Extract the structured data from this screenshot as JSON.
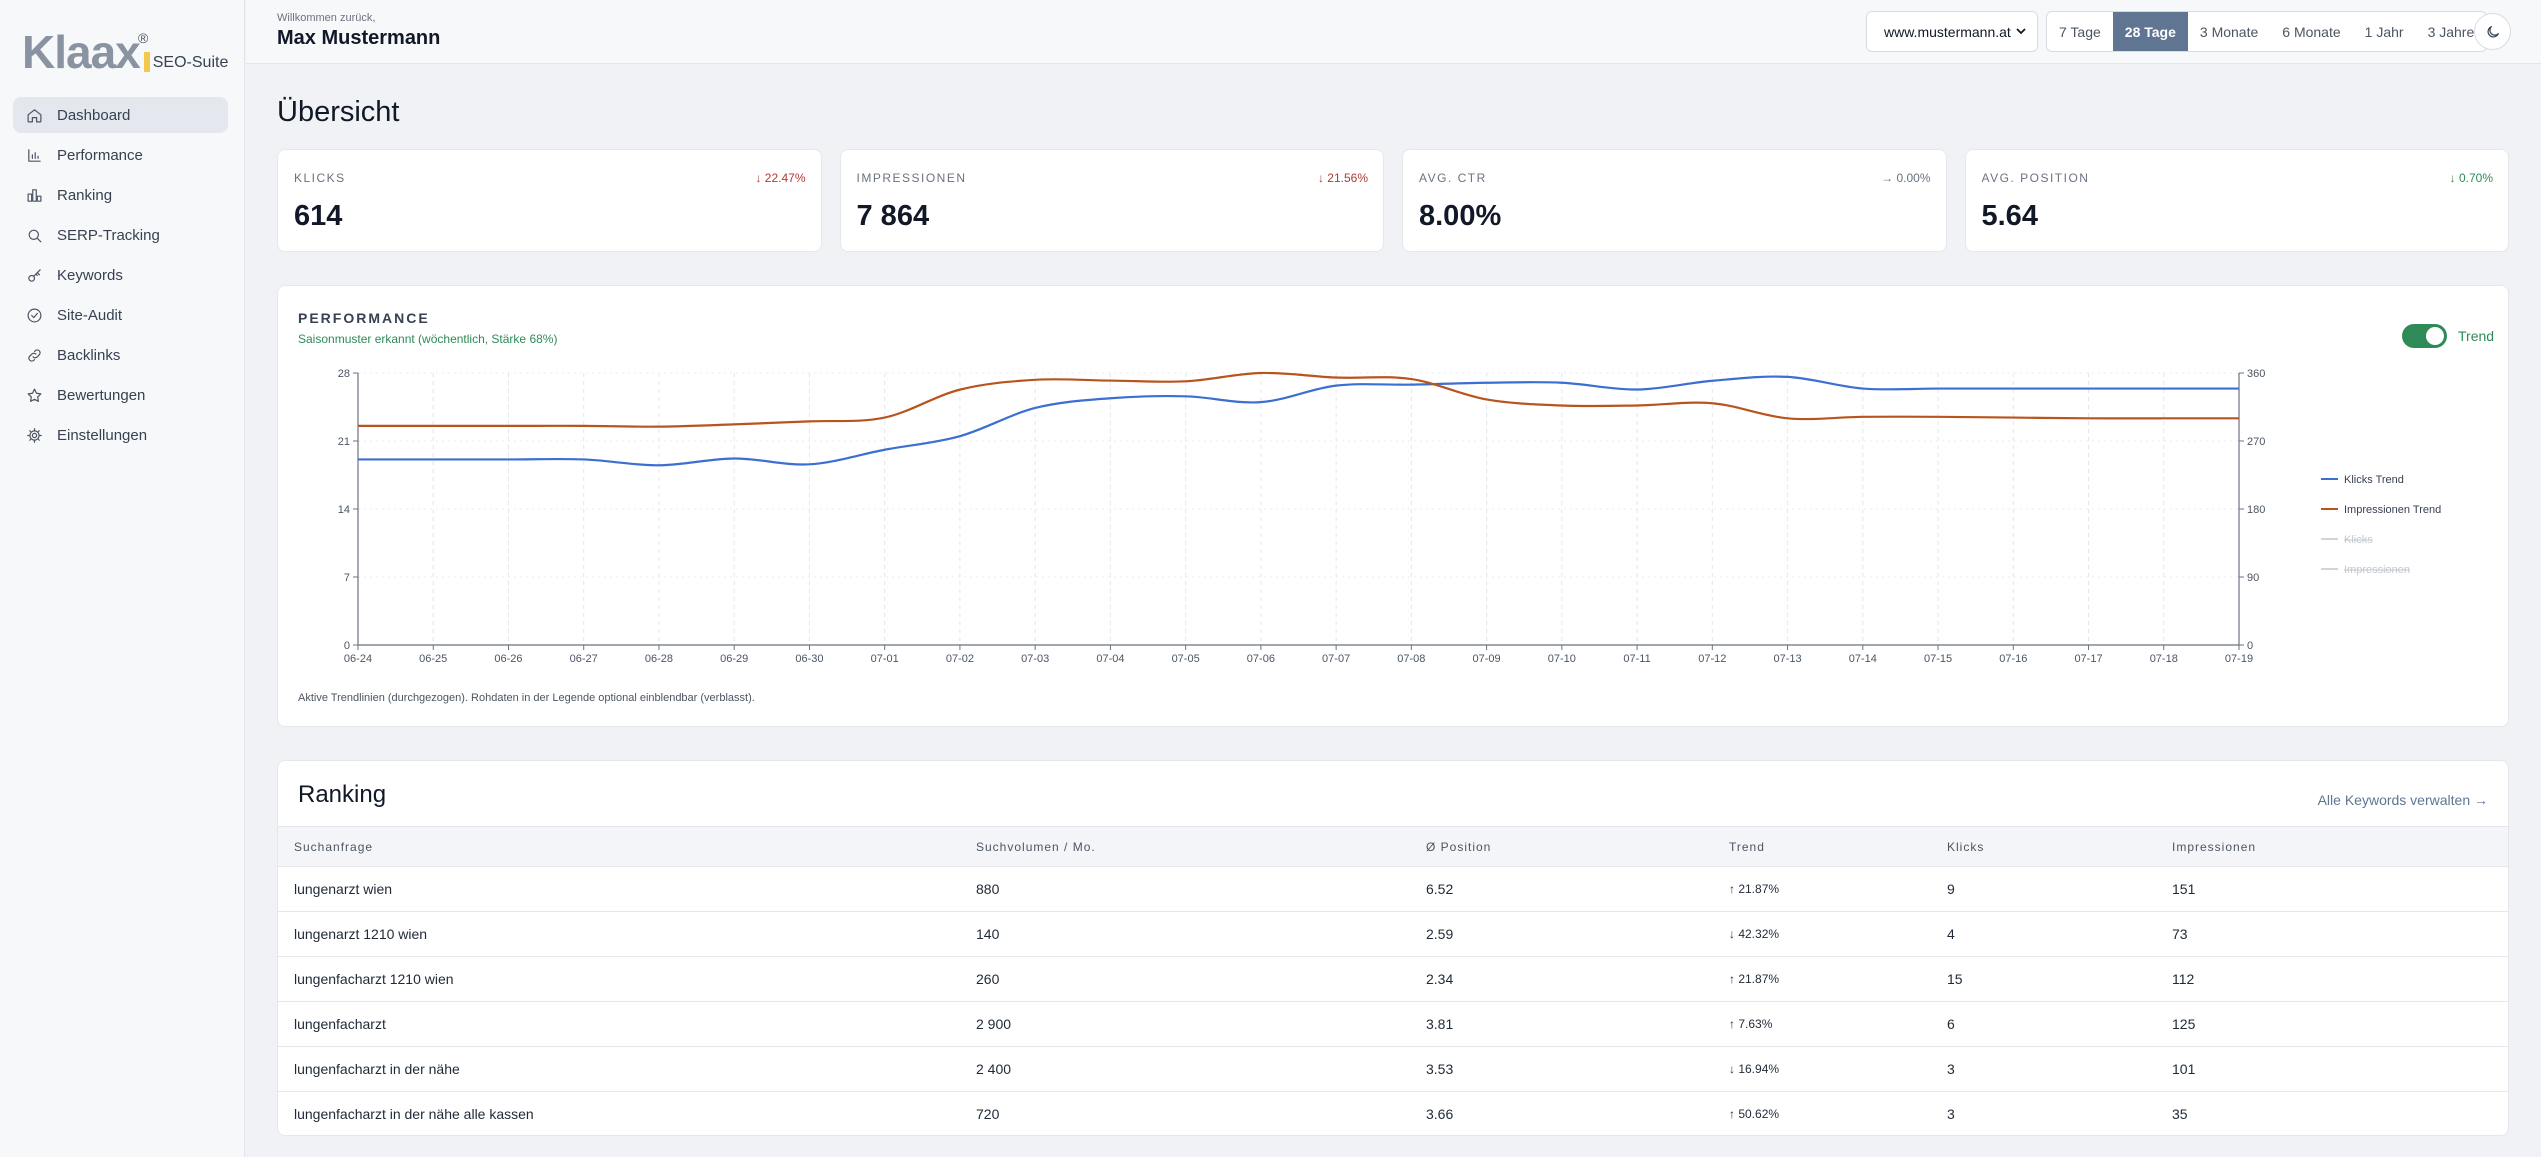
{
  "brand": {
    "logo_text": "Klaax",
    "logo_reg": "®",
    "suite": "SEO-Suite"
  },
  "sidebar": {
    "items": [
      {
        "label": "Dashboard",
        "icon": "home-icon",
        "active": true
      },
      {
        "label": "Performance",
        "icon": "bar-chart-icon"
      },
      {
        "label": "Ranking",
        "icon": "ranking-bars-icon"
      },
      {
        "label": "SERP-Tracking",
        "icon": "search-icon"
      },
      {
        "label": "Keywords",
        "icon": "key-icon"
      },
      {
        "label": "Site-Audit",
        "icon": "check-circle-icon"
      },
      {
        "label": "Backlinks",
        "icon": "link-icon"
      },
      {
        "label": "Bewertungen",
        "icon": "star-icon"
      },
      {
        "label": "Einstellungen",
        "icon": "gear-icon"
      }
    ]
  },
  "header": {
    "welcome": "Willkommen zurück,",
    "user": "Max Mustermann",
    "domain": "www.mustermann.at",
    "ranges": [
      "7 Tage",
      "28 Tage",
      "3 Monate",
      "6 Monate",
      "1 Jahr",
      "3 Jahre"
    ],
    "active_range": "28 Tage",
    "theme_icon": "moon-icon"
  },
  "page_title": "Übersicht",
  "kpis": [
    {
      "label": "KLICKS",
      "value": "614",
      "delta": "22.47%",
      "direction": "down",
      "color": "#b03a2e"
    },
    {
      "label": "IMPRESSIONEN",
      "value": "7 864",
      "delta": "21.56%",
      "direction": "down",
      "color": "#b03a2e"
    },
    {
      "label": "AVG. CTR",
      "value": "8.00%",
      "delta": "0.00%",
      "direction": "flat",
      "color": "#6b7280"
    },
    {
      "label": "AVG. POSITION",
      "value": "5.64",
      "delta": "0.70%",
      "direction": "down",
      "color": "#2e8b57"
    }
  ],
  "performance": {
    "title": "PERFORMANCE",
    "subtitle": "Saisonmuster erkannt (wöchentlich, Stärke 68%)",
    "trend_label": "Trend",
    "trend_on": true,
    "note": "Aktive Trendlinien (durchgezogen). Rohdaten in der Legende optional einblendbar (verblasst)."
  },
  "chart_data": {
    "type": "line",
    "x": [
      "06-24",
      "06-25",
      "06-26",
      "06-27",
      "06-28",
      "06-29",
      "06-30",
      "07-01",
      "07-02",
      "07-03",
      "07-04",
      "07-05",
      "07-06",
      "07-07",
      "07-08",
      "07-09",
      "07-10",
      "07-11",
      "07-12",
      "07-13",
      "07-14",
      "07-15",
      "07-16",
      "07-17",
      "07-18",
      "07-19"
    ],
    "y_left": {
      "ticks": [
        "0",
        "7",
        "14",
        "21",
        "28"
      ],
      "min": 0,
      "max": 28
    },
    "y_right": {
      "ticks": [
        "0",
        "90",
        "180",
        "270",
        "360"
      ],
      "min": 0,
      "max": 360
    },
    "series": [
      {
        "name": "Klicks Trend",
        "axis": "left",
        "color": "#3b6fd1",
        "values": [
          19.1,
          19.1,
          19.1,
          19.1,
          18.5,
          19.2,
          18.6,
          20.1,
          21.5,
          24.4,
          25.4,
          25.6,
          25.0,
          26.7,
          26.8,
          27.0,
          27.0,
          26.3,
          27.2,
          27.6,
          26.4,
          26.4,
          26.4,
          26.4,
          26.4,
          26.4
        ]
      },
      {
        "name": "Impressionen Trend",
        "axis": "right",
        "color": "#b8541e",
        "values": [
          290,
          290,
          290,
          290,
          289,
          292,
          296,
          301,
          338,
          351,
          350,
          349,
          360,
          354,
          352,
          325,
          317,
          317,
          320,
          300,
          302,
          302,
          301,
          300,
          300,
          300
        ]
      }
    ],
    "legend": [
      {
        "name": "Klicks Trend",
        "color": "#3b6fd1",
        "hidden": false
      },
      {
        "name": "Impressionen Trend",
        "color": "#b8541e",
        "hidden": false
      },
      {
        "name": "Klicks",
        "color": "#cfd5dd",
        "hidden": true
      },
      {
        "name": "Impressionen",
        "color": "#cfd5dd",
        "hidden": true
      }
    ],
    "legend_position": "right",
    "grid": true
  },
  "ranking": {
    "title": "Ranking",
    "link": "Alle Keywords verwalten →",
    "columns": [
      "Suchanfrage",
      "Suchvolumen / Mo.",
      "Ø Position",
      "Trend",
      "Klicks",
      "Impressionen"
    ],
    "rows": [
      {
        "query": "lungenarzt wien",
        "volume": "880",
        "position": "6.52",
        "trend": "↑ 21.87%",
        "trend_dir": "up",
        "clicks": "9",
        "impressions": "151"
      },
      {
        "query": "lungenarzt 1210 wien",
        "volume": "140",
        "position": "2.59",
        "trend": "↓ 42.32%",
        "trend_dir": "down",
        "clicks": "4",
        "impressions": "73"
      },
      {
        "query": "lungenfacharzt 1210 wien",
        "volume": "260",
        "position": "2.34",
        "trend": "↑ 21.87%",
        "trend_dir": "up",
        "clicks": "15",
        "impressions": "112"
      },
      {
        "query": "lungenfacharzt",
        "volume": "2 900",
        "position": "3.81",
        "trend": "↑ 7.63%",
        "trend_dir": "up",
        "clicks": "6",
        "impressions": "125"
      },
      {
        "query": "lungenfacharzt in der nähe",
        "volume": "2 400",
        "position": "3.53",
        "trend": "↓ 16.94%",
        "trend_dir": "down",
        "clicks": "3",
        "impressions": "101"
      },
      {
        "query": "lungenfacharzt in der nähe alle kassen",
        "volume": "720",
        "position": "3.66",
        "trend": "↑ 50.62%",
        "trend_dir": "up",
        "clicks": "3",
        "impressions": "35"
      }
    ]
  }
}
